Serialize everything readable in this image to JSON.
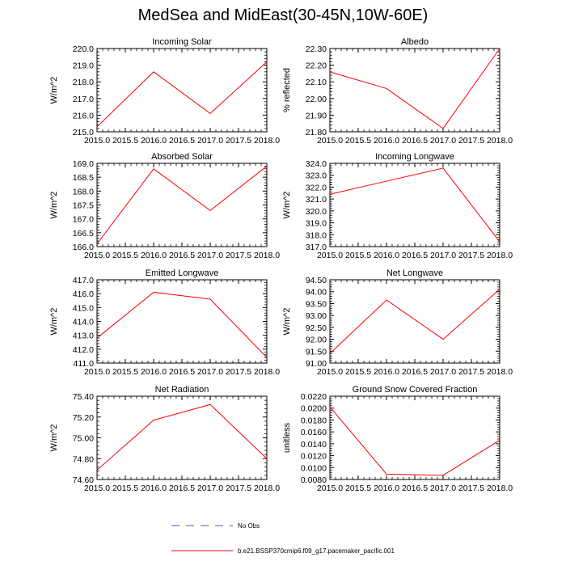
{
  "title": "MedSea and MidEast(30-45N,10W-60E)",
  "legend": {
    "entries": [
      {
        "label": "No Obs",
        "style": "dashed",
        "color": "#5555bb"
      },
      {
        "label": "b.e21.BSSP370cmip6.f09_g17.pacemaker_pacific.001",
        "style": "solid",
        "color": "#ff0000"
      }
    ]
  },
  "colors": {
    "series": "#ff0000",
    "axis": "#000000"
  },
  "chart_data": [
    {
      "type": "line",
      "title": "Incoming Solar",
      "ylabel": "W/m^2",
      "x": [
        2015,
        2016,
        2017,
        2018
      ],
      "values": [
        215.3,
        218.6,
        216.1,
        219.2
      ],
      "xlim": [
        2015,
        2018
      ],
      "ylim": [
        215,
        220
      ],
      "xticks": [
        "2015.0",
        "2015.5",
        "2016.0",
        "2016.5",
        "2017.0",
        "2017.5",
        "2018.0"
      ],
      "yticks": [
        "215.0",
        "216.0",
        "217.0",
        "218.0",
        "219.0",
        "220.0"
      ]
    },
    {
      "type": "line",
      "title": "Albedo",
      "ylabel": "% reflected",
      "x": [
        2015,
        2016,
        2017,
        2018
      ],
      "values": [
        22.16,
        22.06,
        21.82,
        22.3
      ],
      "xlim": [
        2015,
        2018
      ],
      "ylim": [
        21.8,
        22.3
      ],
      "xticks": [
        "2015.0",
        "2015.5",
        "2016.0",
        "2016.5",
        "2017.0",
        "2017.5",
        "2018.0"
      ],
      "yticks": [
        "21.80",
        "21.90",
        "22.00",
        "22.10",
        "22.20",
        "22.30"
      ]
    },
    {
      "type": "line",
      "title": "Absorbed Solar",
      "ylabel": "W/m^2",
      "x": [
        2015,
        2016,
        2017,
        2018
      ],
      "values": [
        166.1,
        168.8,
        167.3,
        168.9
      ],
      "xlim": [
        2015,
        2018
      ],
      "ylim": [
        166,
        169
      ],
      "xticks": [
        "2015.0",
        "2015.5",
        "2016.0",
        "2016.5",
        "2017.0",
        "2017.5",
        "2018.0"
      ],
      "yticks": [
        "166.0",
        "166.5",
        "167.0",
        "167.5",
        "168.0",
        "168.5",
        "169.0"
      ]
    },
    {
      "type": "line",
      "title": "Incoming Longwave",
      "ylabel": "W/m^2",
      "x": [
        2015,
        2016,
        2017,
        2018
      ],
      "values": [
        321.4,
        322.5,
        323.6,
        317.4
      ],
      "xlim": [
        2015,
        2018
      ],
      "ylim": [
        317,
        324
      ],
      "xticks": [
        "2015.0",
        "2015.5",
        "2016.0",
        "2016.5",
        "2017.0",
        "2017.5",
        "2018.0"
      ],
      "yticks": [
        "317.0",
        "318.0",
        "319.0",
        "320.0",
        "321.0",
        "322.0",
        "323.0",
        "324.0"
      ]
    },
    {
      "type": "line",
      "title": "Emitted Longwave",
      "ylabel": "W/m^2",
      "x": [
        2015,
        2016,
        2017,
        2018
      ],
      "values": [
        412.8,
        416.1,
        415.6,
        411.4
      ],
      "xlim": [
        2015,
        2018
      ],
      "ylim": [
        411,
        417
      ],
      "xticks": [
        "2015.0",
        "2015.5",
        "2016.0",
        "2016.5",
        "2017.0",
        "2017.5",
        "2018.0"
      ],
      "yticks": [
        "411.0",
        "412.0",
        "413.0",
        "414.0",
        "415.0",
        "416.0",
        "417.0"
      ]
    },
    {
      "type": "line",
      "title": "Net Longwave",
      "ylabel": "W/m^2",
      "x": [
        2015,
        2016,
        2017,
        2018
      ],
      "values": [
        91.4,
        93.65,
        92.0,
        94.1
      ],
      "xlim": [
        2015,
        2018
      ],
      "ylim": [
        91,
        94.5
      ],
      "xticks": [
        "2015.0",
        "2015.5",
        "2016.0",
        "2016.5",
        "2017.0",
        "2017.5",
        "2018.0"
      ],
      "yticks": [
        "91.00",
        "91.50",
        "92.00",
        "92.50",
        "93.00",
        "93.50",
        "94.00",
        "94.50"
      ]
    },
    {
      "type": "line",
      "title": "Net Radiation",
      "ylabel": "W/m^2",
      "x": [
        2015,
        2016,
        2017,
        2018
      ],
      "values": [
        74.69,
        75.17,
        75.32,
        74.8
      ],
      "xlim": [
        2015,
        2018
      ],
      "ylim": [
        74.6,
        75.4
      ],
      "xticks": [
        "2015.0",
        "2015.5",
        "2016.0",
        "2016.5",
        "2017.0",
        "2017.5",
        "2018.0"
      ],
      "yticks": [
        "74.60",
        "74.80",
        "75.00",
        "75.20",
        "75.40"
      ]
    },
    {
      "type": "line",
      "title": "Ground Snow Covered Fraction",
      "ylabel": "unitless",
      "x": [
        2015,
        2016,
        2017,
        2018
      ],
      "values": [
        0.0202,
        0.0089,
        0.0087,
        0.0146
      ],
      "xlim": [
        2015,
        2018
      ],
      "ylim": [
        0.008,
        0.022
      ],
      "xticks": [
        "2015.0",
        "2015.5",
        "2016.0",
        "2016.5",
        "2017.0",
        "2017.5",
        "2018.0"
      ],
      "yticks": [
        "0.0080",
        "0.0100",
        "0.0120",
        "0.0140",
        "0.0160",
        "0.0180",
        "0.0200",
        "0.0220"
      ]
    }
  ]
}
